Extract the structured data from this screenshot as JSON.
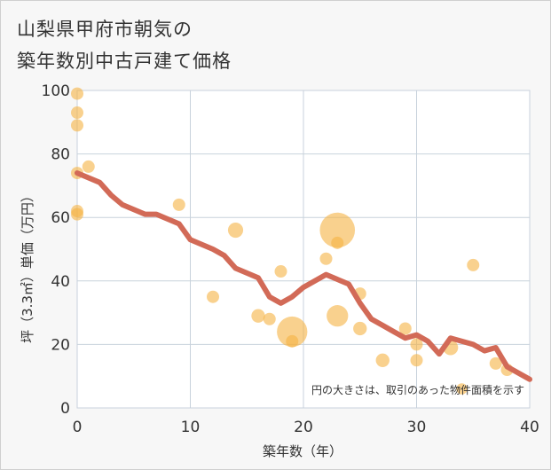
{
  "title_line1": "山梨県甲府市朝気の",
  "title_line2": "築年数別中古戸建て価格",
  "colors": {
    "bubble": "#f5b342",
    "trend": "#d26a57",
    "grid": "#c8d2dc",
    "plot_bg": "#ffffff"
  },
  "chart_data": {
    "type": "scatter",
    "xlabel": "築年数（年）",
    "ylabel": "坪（3.3㎡）単価（万円）",
    "xlim": [
      0,
      40
    ],
    "ylim": [
      0,
      100
    ],
    "xticks": [
      "0",
      "10",
      "20",
      "30",
      "40"
    ],
    "yticks": [
      "0",
      "20",
      "40",
      "60",
      "80",
      "100"
    ],
    "grid": true,
    "note": "円の大きさは、取引のあった物件面積を示す",
    "points": [
      {
        "x": 0,
        "y": 99,
        "size": 1
      },
      {
        "x": 0,
        "y": 93,
        "size": 1
      },
      {
        "x": 0,
        "y": 89,
        "size": 1
      },
      {
        "x": 1,
        "y": 76,
        "size": 1
      },
      {
        "x": 0,
        "y": 74,
        "size": 1
      },
      {
        "x": 0,
        "y": 62,
        "size": 1
      },
      {
        "x": 0,
        "y": 61,
        "size": 1
      },
      {
        "x": 9,
        "y": 64,
        "size": 1
      },
      {
        "x": 14,
        "y": 56,
        "size": 1.5
      },
      {
        "x": 12,
        "y": 35,
        "size": 1
      },
      {
        "x": 18,
        "y": 43,
        "size": 1
      },
      {
        "x": 16,
        "y": 29,
        "size": 1.2
      },
      {
        "x": 17,
        "y": 28,
        "size": 1
      },
      {
        "x": 19,
        "y": 24,
        "size": 6
      },
      {
        "x": 19,
        "y": 21,
        "size": 1
      },
      {
        "x": 22,
        "y": 47,
        "size": 1
      },
      {
        "x": 23,
        "y": 56,
        "size": 8
      },
      {
        "x": 23,
        "y": 52,
        "size": 1
      },
      {
        "x": 23,
        "y": 29,
        "size": 3
      },
      {
        "x": 25,
        "y": 36,
        "size": 1
      },
      {
        "x": 25,
        "y": 25,
        "size": 1.2
      },
      {
        "x": 27,
        "y": 15,
        "size": 1.2
      },
      {
        "x": 29,
        "y": 25,
        "size": 1
      },
      {
        "x": 30,
        "y": 20,
        "size": 1
      },
      {
        "x": 30,
        "y": 15,
        "size": 1
      },
      {
        "x": 33,
        "y": 19,
        "size": 1.5
      },
      {
        "x": 34,
        "y": 6,
        "size": 0.8
      },
      {
        "x": 35,
        "y": 45,
        "size": 1
      },
      {
        "x": 37,
        "y": 14,
        "size": 1
      },
      {
        "x": 38,
        "y": 12,
        "size": 1
      }
    ],
    "trend": {
      "x": [
        0,
        2,
        3,
        4,
        6,
        7,
        9,
        10,
        12,
        13,
        14,
        16,
        17,
        18,
        19,
        20,
        22,
        24,
        25,
        26,
        27,
        28,
        29,
        30,
        31,
        32,
        33,
        35,
        36,
        37,
        38,
        40
      ],
      "y": [
        74,
        71,
        67,
        64,
        61,
        61,
        58,
        53,
        50,
        48,
        44,
        41,
        35,
        33,
        35,
        38,
        42,
        39,
        33,
        28,
        26,
        24,
        22,
        23,
        21,
        17,
        22,
        20,
        18,
        19,
        13,
        9
      ]
    }
  }
}
